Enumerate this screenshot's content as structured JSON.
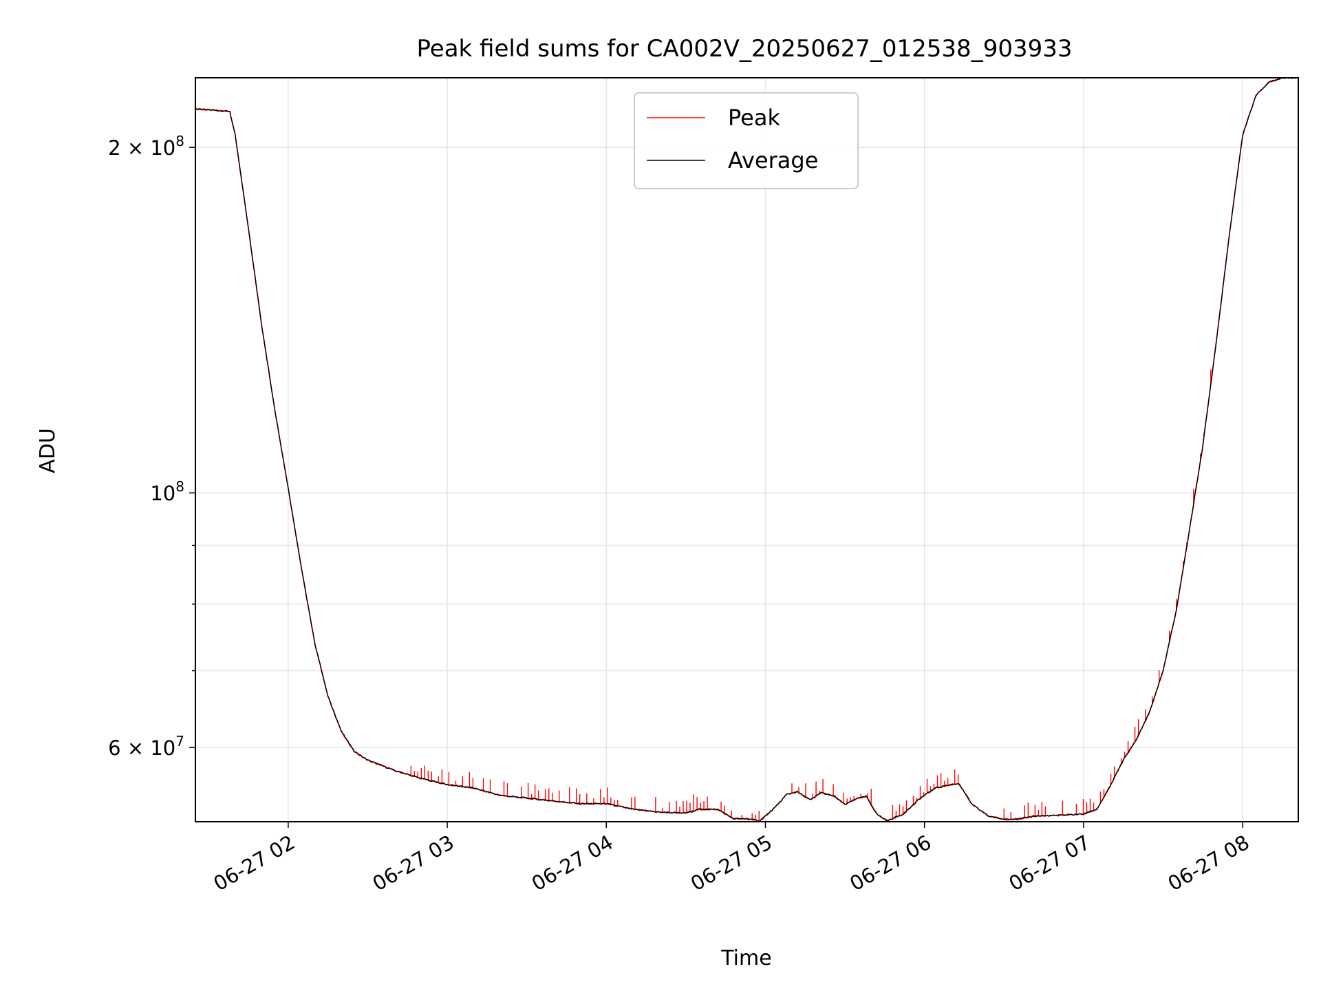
{
  "chart_data": {
    "type": "line",
    "title": "Peak field sums for CA002V_20250627_012538_903933",
    "xlabel": "Time",
    "ylabel": "ADU",
    "x_ticks": [
      "06-27 02",
      "06-27 03",
      "06-27 04",
      "06-27 05",
      "06-27 06",
      "06-27 07",
      "06-27 08"
    ],
    "y_ticks": [
      {
        "value": 60000000,
        "label": "6 × 10^7"
      },
      {
        "value": 100000000,
        "label": "10^8"
      },
      {
        "value": 200000000,
        "label": "2 × 10^8"
      }
    ],
    "y_scale": "log",
    "xlim": [
      "06-27 01:25",
      "06-27 08:21"
    ],
    "ylim": [
      51700000,
      230000000
    ],
    "grid": true,
    "legend_position": "top-center",
    "colors": {
      "peak": "#ff0000",
      "average": "#000000"
    },
    "series": [
      {
        "name": "Peak",
        "color": "#ff0000",
        "x": [
          "06-27 01:25",
          "06-27 01:38",
          "06-27 01:40",
          "06-27 01:45",
          "06-27 01:50",
          "06-27 01:55",
          "06-27 02:00",
          "06-27 02:05",
          "06-27 02:10",
          "06-27 02:15",
          "06-27 02:20",
          "06-27 02:25",
          "06-27 02:30",
          "06-27 02:40",
          "06-27 02:50",
          "06-27 03:00",
          "06-27 03:10",
          "06-27 03:20",
          "06-27 03:30",
          "06-27 03:40",
          "06-27 03:50",
          "06-27 04:00",
          "06-27 04:10",
          "06-27 04:20",
          "06-27 04:30",
          "06-27 04:35",
          "06-27 04:42",
          "06-27 04:48",
          "06-27 04:53",
          "06-27 04:58",
          "06-27 05:04",
          "06-27 05:08",
          "06-27 05:12",
          "06-27 05:17",
          "06-27 05:21",
          "06-27 05:26",
          "06-27 05:30",
          "06-27 05:34",
          "06-27 05:38",
          "06-27 05:42",
          "06-27 05:46",
          "06-27 05:52",
          "06-27 05:58",
          "06-27 06:04",
          "06-27 06:10",
          "06-27 06:13",
          "06-27 06:18",
          "06-27 06:24",
          "06-27 06:30",
          "06-27 06:36",
          "06-27 06:42",
          "06-27 06:50",
          "06-27 07:00",
          "06-27 07:05",
          "06-27 07:10",
          "06-27 07:15",
          "06-27 07:20",
          "06-27 07:25",
          "06-27 07:30",
          "06-27 07:35",
          "06-27 07:40",
          "06-27 07:45",
          "06-27 07:50",
          "06-27 07:55",
          "06-27 08:00",
          "06-27 08:05",
          "06-27 08:10",
          "06-27 08:15",
          "06-27 08:21"
        ],
        "y": [
          216000000,
          215000000,
          205000000,
          170000000,
          140000000,
          118000000,
          101000000,
          86000000,
          74000000,
          66500000,
          62000000,
          59500000,
          58500000,
          57300000,
          56400000,
          55700000,
          55300000,
          54500000,
          54200000,
          53900000,
          53600000,
          53600000,
          53000000,
          52700000,
          52600000,
          53000000,
          53000000,
          52000000,
          52000000,
          51800000,
          53300000,
          54600000,
          54900000,
          54000000,
          54800000,
          54400000,
          53500000,
          54100000,
          54400000,
          52500000,
          51800000,
          52500000,
          54100000,
          55300000,
          55700000,
          55800000,
          53500000,
          52300000,
          51950000,
          52000000,
          52300000,
          52350000,
          52500000,
          53000000,
          55500000,
          58500000,
          61000000,
          64500000,
          70000000,
          79000000,
          93000000,
          110000000,
          135000000,
          168000000,
          205000000,
          222000000,
          228000000,
          230000000,
          230000000
        ],
        "spike_windows": [
          [
            "06-27 02:45",
            "06-27 04:58"
          ],
          [
            "06-27 05:10",
            "06-27 05:40"
          ],
          [
            "06-27 05:48",
            "06-27 06:15"
          ],
          [
            "06-27 06:30",
            "06-27 07:50"
          ]
        ]
      },
      {
        "name": "Average",
        "color": "#000000",
        "x": [
          "06-27 01:25",
          "06-27 01:38",
          "06-27 01:40",
          "06-27 01:45",
          "06-27 01:50",
          "06-27 01:55",
          "06-27 02:00",
          "06-27 02:05",
          "06-27 02:10",
          "06-27 02:15",
          "06-27 02:20",
          "06-27 02:25",
          "06-27 02:30",
          "06-27 02:40",
          "06-27 02:50",
          "06-27 03:00",
          "06-27 03:10",
          "06-27 03:20",
          "06-27 03:30",
          "06-27 03:40",
          "06-27 03:50",
          "06-27 04:00",
          "06-27 04:10",
          "06-27 04:20",
          "06-27 04:30",
          "06-27 04:35",
          "06-27 04:42",
          "06-27 04:48",
          "06-27 04:53",
          "06-27 04:58",
          "06-27 05:04",
          "06-27 05:08",
          "06-27 05:12",
          "06-27 05:17",
          "06-27 05:21",
          "06-27 05:26",
          "06-27 05:30",
          "06-27 05:34",
          "06-27 05:38",
          "06-27 05:42",
          "06-27 05:46",
          "06-27 05:52",
          "06-27 05:58",
          "06-27 06:04",
          "06-27 06:10",
          "06-27 06:13",
          "06-27 06:18",
          "06-27 06:24",
          "06-27 06:30",
          "06-27 06:36",
          "06-27 06:42",
          "06-27 06:50",
          "06-27 07:00",
          "06-27 07:05",
          "06-27 07:10",
          "06-27 07:15",
          "06-27 07:20",
          "06-27 07:25",
          "06-27 07:30",
          "06-27 07:35",
          "06-27 07:40",
          "06-27 07:45",
          "06-27 07:50",
          "06-27 07:55",
          "06-27 08:00",
          "06-27 08:05",
          "06-27 08:10",
          "06-27 08:15",
          "06-27 08:21"
        ],
        "y": [
          216000000,
          215000000,
          205000000,
          170000000,
          140000000,
          118000000,
          101000000,
          86000000,
          74000000,
          66500000,
          62000000,
          59500000,
          58500000,
          57300000,
          56400000,
          55700000,
          55300000,
          54500000,
          54200000,
          53900000,
          53600000,
          53600000,
          53000000,
          52700000,
          52600000,
          53000000,
          53000000,
          52000000,
          52000000,
          51800000,
          53300000,
          54600000,
          54900000,
          54000000,
          54800000,
          54400000,
          53500000,
          54100000,
          54400000,
          52500000,
          51800000,
          52500000,
          54100000,
          55300000,
          55700000,
          55800000,
          53500000,
          52300000,
          51950000,
          52000000,
          52300000,
          52350000,
          52500000,
          53000000,
          55500000,
          58500000,
          61000000,
          64500000,
          70000000,
          79000000,
          93000000,
          110000000,
          135000000,
          168000000,
          205000000,
          222000000,
          228000000,
          230000000,
          230000000
        ]
      }
    ]
  }
}
